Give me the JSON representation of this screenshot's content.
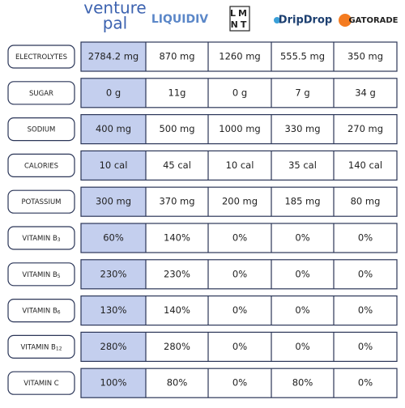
{
  "header": {
    "brands": [
      {
        "lines": [
          "venture",
          "pal"
        ]
      },
      {
        "lines": [
          "LIQUIDIV"
        ]
      },
      {
        "lines": [
          "LM",
          "NT"
        ]
      },
      {
        "lines": [
          "DripDrop"
        ]
      },
      {
        "lines": [
          "GATORADE"
        ]
      }
    ]
  },
  "table": {
    "rows": [
      {
        "label": "ELECTROLYTES",
        "cells": [
          "2784.2 mg",
          "870 mg",
          "1260 mg",
          "555.5 mg",
          "350 mg"
        ]
      },
      {
        "label": "SUGAR",
        "cells": [
          "0 g",
          "11g",
          "0 g",
          "7 g",
          "34 g"
        ]
      },
      {
        "label": "SODIUM",
        "cells": [
          "400 mg",
          "500 mg",
          "1000 mg",
          "330 mg",
          "270 mg"
        ]
      },
      {
        "label": "CALORIES",
        "cells": [
          "10 cal",
          "45 cal",
          "10 cal",
          "35 cal",
          "140 cal"
        ]
      },
      {
        "label": "POTASSIUM",
        "cells": [
          "300 mg",
          "370 mg",
          "200 mg",
          "185 mg",
          "80 mg"
        ]
      },
      {
        "label": "VITAMIN B",
        "subscript": "3",
        "cells": [
          "60%",
          "140%",
          "0%",
          "0%",
          "0%"
        ]
      },
      {
        "label": "VITAMIN B",
        "subscript": "5",
        "cells": [
          "230%",
          "230%",
          "0%",
          "0%",
          "0%"
        ]
      },
      {
        "label": "VITAMIN B",
        "subscript": "6",
        "cells": [
          "130%",
          "140%",
          "0%",
          "0%",
          "0%"
        ]
      },
      {
        "label": "VITAMIN B",
        "subscript": "12",
        "cells": [
          "280%",
          "280%",
          "0%",
          "0%",
          "0%"
        ]
      },
      {
        "label": "VITAMIN C",
        "cells": [
          "100%",
          "80%",
          "0%",
          "80%",
          "0%"
        ]
      }
    ]
  }
}
